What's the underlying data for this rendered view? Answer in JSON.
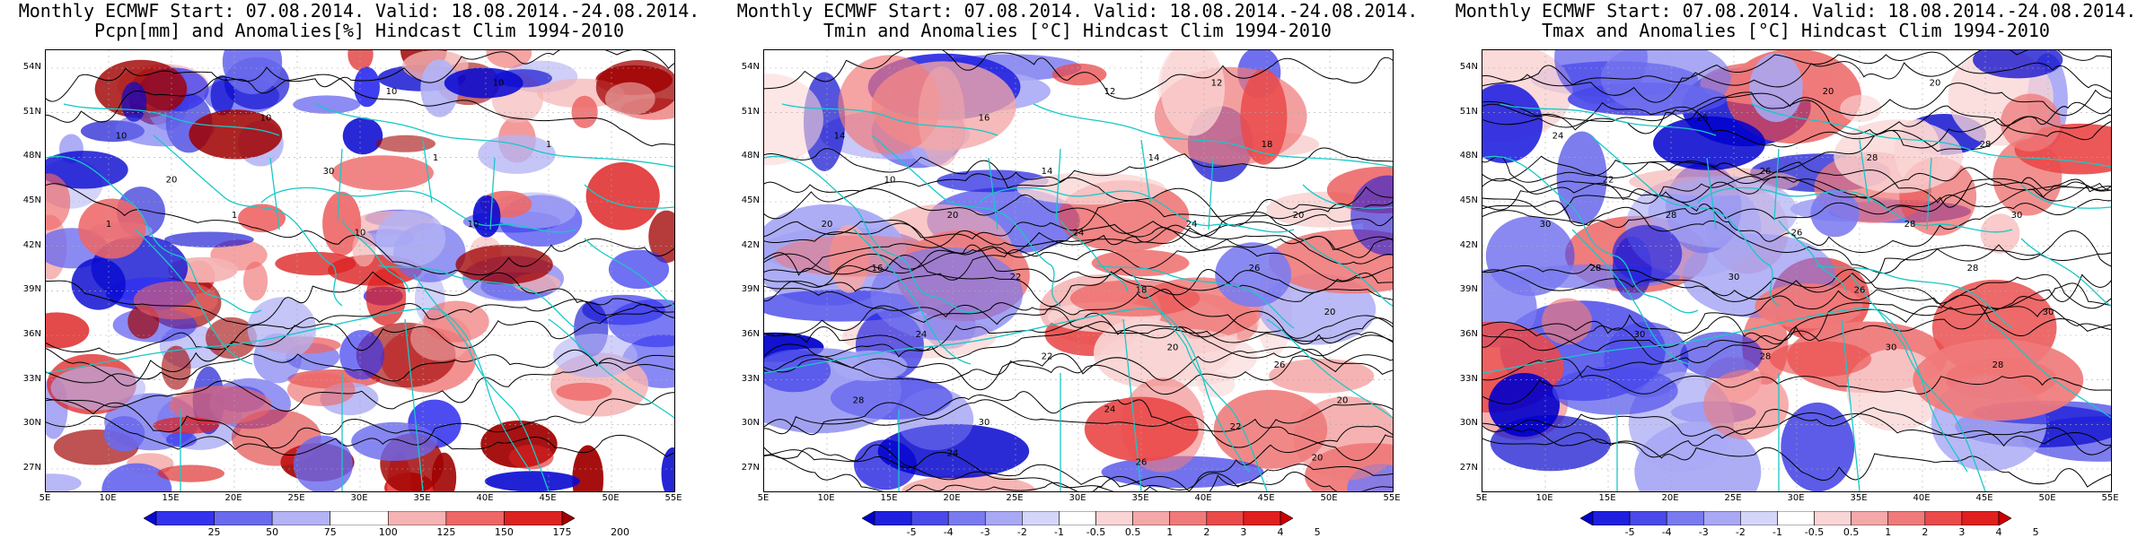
{
  "panels": [
    {
      "title_line1": "Monthly ECMWF Start: 07.08.2014. Valid: 18.08.2014.-24.08.2014.",
      "title_line2": "Pcpn[mm] and Anomalies[%] Hindcast Clim 1994-2010",
      "colorbar": {
        "labels": [
          "25",
          "50",
          "75",
          "100",
          "125",
          "150",
          "175",
          "200"
        ],
        "colors": [
          "#0a0ad0",
          "#3333ee",
          "#6a6aee",
          "#b3b3f5",
          "#ffffff",
          "#f5b3b3",
          "#ee6666",
          "#dd2222",
          "#a00000"
        ]
      },
      "contour_labels": [
        "10",
        "10",
        "10",
        "10",
        "20",
        "30",
        "1",
        "1",
        "1",
        "1",
        "10",
        "10"
      ]
    },
    {
      "title_line1": "Monthly ECMWF Start: 07.08.2014. Valid: 18.08.2014.-24.08.2014.",
      "title_line2": "Tmin and Anomalies [°C] Hindcast Clim 1994-2010",
      "colorbar": {
        "labels": [
          "-5",
          "-4",
          "-3",
          "-2",
          "-1",
          "-0.5",
          "0.5",
          "1",
          "2",
          "3",
          "4",
          "5"
        ],
        "colors": [
          "#0000cc",
          "#1f1fe0",
          "#4a4aea",
          "#7a7af0",
          "#a8a8f5",
          "#d5d5fa",
          "#ffffff",
          "#fad5d5",
          "#f5a8a8",
          "#f07a7a",
          "#ea4a4a",
          "#e01f1f",
          "#cc0000"
        ]
      },
      "contour_labels": [
        "14",
        "16",
        "12",
        "12",
        "10",
        "14",
        "14",
        "18",
        "20",
        "20",
        "24",
        "24",
        "20",
        "16",
        "22",
        "18",
        "26",
        "20",
        "24",
        "22",
        "20",
        "26",
        "28",
        "30",
        "24",
        "22",
        "20",
        "24",
        "26",
        "20"
      ]
    },
    {
      "title_line1": "Monthly ECMWF Start: 07.08.2014. Valid: 18.08.2014.-24.08.2014.",
      "title_line2": "Tmax and Anomalies [°C] Hindcast Clim 1994-2010",
      "colorbar": {
        "labels": [
          "-5",
          "-4",
          "-3",
          "-2",
          "-1",
          "-0.5",
          "0.5",
          "1",
          "2",
          "3",
          "4",
          "5"
        ],
        "colors": [
          "#0000cc",
          "#1f1fe0",
          "#4a4aea",
          "#7a7af0",
          "#a8a8f5",
          "#d5d5fa",
          "#ffffff",
          "#fad5d5",
          "#f5a8a8",
          "#f07a7a",
          "#ea4a4a",
          "#e01f1f",
          "#cc0000"
        ]
      },
      "contour_labels": [
        "24",
        "26",
        "20",
        "20",
        "22",
        "26",
        "28",
        "28",
        "30",
        "28",
        "26",
        "28",
        "30",
        "28",
        "30",
        "26",
        "28",
        "30",
        "30",
        "28",
        "30",
        "28"
      ]
    }
  ],
  "axes": {
    "lat_labels": [
      "54N",
      "51N",
      "48N",
      "45N",
      "42N",
      "39N",
      "36N",
      "33N",
      "30N",
      "27N"
    ],
    "lon_labels": [
      "5E",
      "10E",
      "15E",
      "20E",
      "25E",
      "30E",
      "35E",
      "40E",
      "45E",
      "50E",
      "55E"
    ]
  },
  "colors": {
    "coastline": "#18c8c8",
    "contour": "#000000",
    "grid": "#aaaaaa"
  }
}
